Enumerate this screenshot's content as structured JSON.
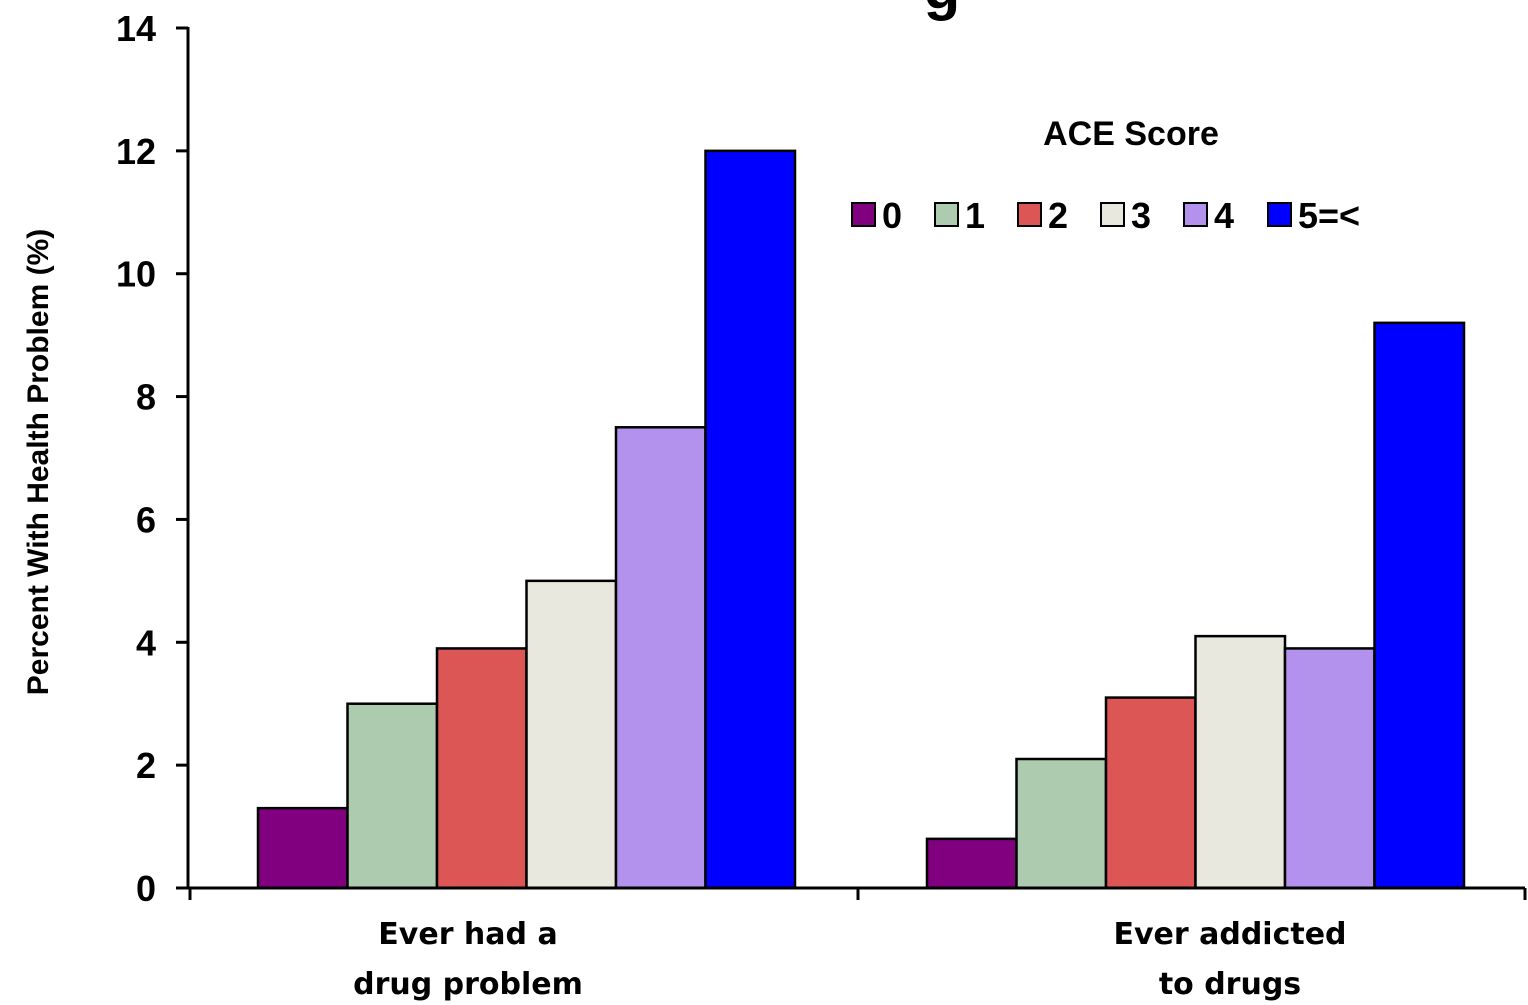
{
  "top_fragment": {
    "text": "g",
    "color": "#ff0000"
  },
  "chart_data": {
    "type": "bar",
    "title": "",
    "ylabel": "Percent With Health Problem  (%)",
    "xlabel": "",
    "ylim": [
      0,
      14
    ],
    "yticks": [
      0,
      2,
      4,
      6,
      8,
      10,
      12,
      14
    ],
    "grid": false,
    "categories": [
      [
        "Ever had a",
        "drug problem"
      ],
      [
        "Ever addicted",
        "to drugs"
      ]
    ],
    "legend": {
      "title": "ACE Score",
      "placement": "top-right"
    },
    "series": [
      {
        "name": "0",
        "color": "#800080",
        "values": [
          1.3,
          0.8
        ]
      },
      {
        "name": "1",
        "color": "#adcbae",
        "values": [
          3.0,
          2.1
        ]
      },
      {
        "name": "2",
        "color": "#dd5656",
        "values": [
          3.9,
          3.1
        ]
      },
      {
        "name": "3",
        "color": "#e8e8de",
        "values": [
          5.0,
          4.1
        ]
      },
      {
        "name": "4",
        "color": "#b292ed",
        "values": [
          7.5,
          3.9
        ]
      },
      {
        "name": "5=<",
        "color": "#0000ff",
        "values": [
          12.0,
          9.2
        ]
      }
    ]
  }
}
